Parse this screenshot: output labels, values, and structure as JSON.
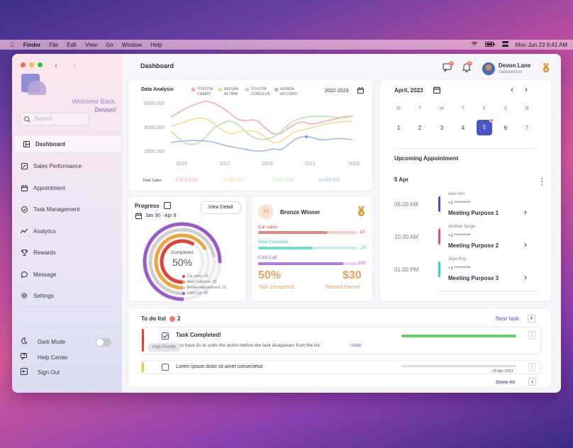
{
  "menubar": {
    "apple": "",
    "app_name": "Finder",
    "items": [
      "File",
      "Edit",
      "View",
      "Go",
      "Window",
      "Help"
    ],
    "datetime": "Mon Jun 23  9:41 AM"
  },
  "sidebar": {
    "welcome_line1": "Welcome Back,",
    "welcome_name": "Devon!",
    "search_placeholder": "Search",
    "items": [
      {
        "label": "Dashboard",
        "icon": "dashboard-icon",
        "active": true
      },
      {
        "label": "Sales Performance",
        "icon": "trend-icon"
      },
      {
        "label": "Appointment",
        "icon": "calendar-icon"
      },
      {
        "label": "Task Management",
        "icon": "check-circle-icon"
      },
      {
        "label": "Analytics",
        "icon": "analytics-icon"
      },
      {
        "label": "Rewards",
        "icon": "trophy-icon"
      },
      {
        "label": "Message",
        "icon": "chat-icon"
      },
      {
        "label": "Settings",
        "icon": "gear-icon"
      }
    ],
    "dark_mode": "Dark Mode",
    "help_center": "Help Center",
    "sign_out": "Sign Out"
  },
  "header": {
    "title": "Dashboard",
    "msg_count": "2",
    "notif_count": "3",
    "user_name": "Devon Lane",
    "user_role": "Salesperson"
  },
  "chart_data": {
    "type": "line",
    "title": "Data Analysis",
    "period": "2022-2023",
    "x": [
      "2015",
      "2017",
      "2019",
      "2021",
      "2023"
    ],
    "yticks": [
      "5000,000",
      "3000,000",
      "2000,000"
    ],
    "series": [
      {
        "name": "TOYOTA CAMRY",
        "color": "#f6a9b4",
        "total": "4,022,639"
      },
      {
        "name": "NISSAN ALTIMA",
        "color": "#f5dc8a",
        "total": "3,399,017"
      },
      {
        "name": "TOYOTA COROLLA",
        "color": "#b5e8a8",
        "total": "3,982,658"
      },
      {
        "name": "HONDA ACCORD",
        "color": "#a7b8ee",
        "total": "3,043,651"
      }
    ],
    "total_label": "Total Sales"
  },
  "progress": {
    "title": "Progress",
    "range": "Jan 30 - Apr 8",
    "view_detail": "View Detail",
    "center_label": "Completed",
    "center_value": "50%",
    "legend": [
      {
        "label": "Car sales: 10",
        "color": "#e0433a"
      },
      {
        "label": "New Customer: 25",
        "color": "#f0a53a"
      },
      {
        "label": "Booked Appointment: 10",
        "color": "#cfcfd6"
      },
      {
        "label": "Cold Call: 28",
        "color": "#9b59d0"
      }
    ]
  },
  "reward": {
    "rank": "#1",
    "title": "Bronze Winner",
    "bars": [
      {
        "label": "Car sales",
        "value": "10",
        "color": "#e0433a",
        "fill": 0.7
      },
      {
        "label": "New Customer",
        "value": "20",
        "color": "#2ad3b7",
        "fill": 0.55
      },
      {
        "label": "Cold Call",
        "value": "100",
        "color": "#9b59d0",
        "fill": 0.86
      }
    ],
    "pct": "50%",
    "pct_label": "Task Completed",
    "amount": "$30",
    "amount_label": "Reward Earned"
  },
  "calendar": {
    "month": "April, 2023",
    "weekdays": [
      "M",
      "T",
      "W",
      "T",
      "F",
      "S",
      "S"
    ],
    "days": [
      "1",
      "2",
      "3",
      "4",
      "5",
      "6",
      "7"
    ],
    "selected_day": "5"
  },
  "appointments": {
    "title": "Upcoming Appointment",
    "date": "5 Apr",
    "items": [
      {
        "time": "08.00 AM",
        "name": "Alex Ann",
        "phone": "+1 **********",
        "purpose": "Meeting Purpose 1",
        "color": "#4a4ec8"
      },
      {
        "time": "10.00 AM",
        "name": "Andrew Surge",
        "phone": "+1 **********",
        "purpose": "Meeting Purpose 2",
        "color": "#e04aa0"
      },
      {
        "time": "01.00 PM",
        "name": "Joya Roy",
        "phone": "+1 **********",
        "purpose": "Meeting Purpose 3",
        "color": "#2ed3e8"
      }
    ]
  },
  "todo": {
    "title": "To do list",
    "count": "2",
    "new_task": "New task",
    "tooltip": "High Priority",
    "item1_title": "Task Completed!",
    "item1_undo_text": "You have 5s to undo the action before the task disappears from the list.",
    "undo": "Undo",
    "item2_text": "Lorem ipsum dolor sit amet consectetur.",
    "item2_date": "24 Apr 2023",
    "show_all": "Show All"
  }
}
